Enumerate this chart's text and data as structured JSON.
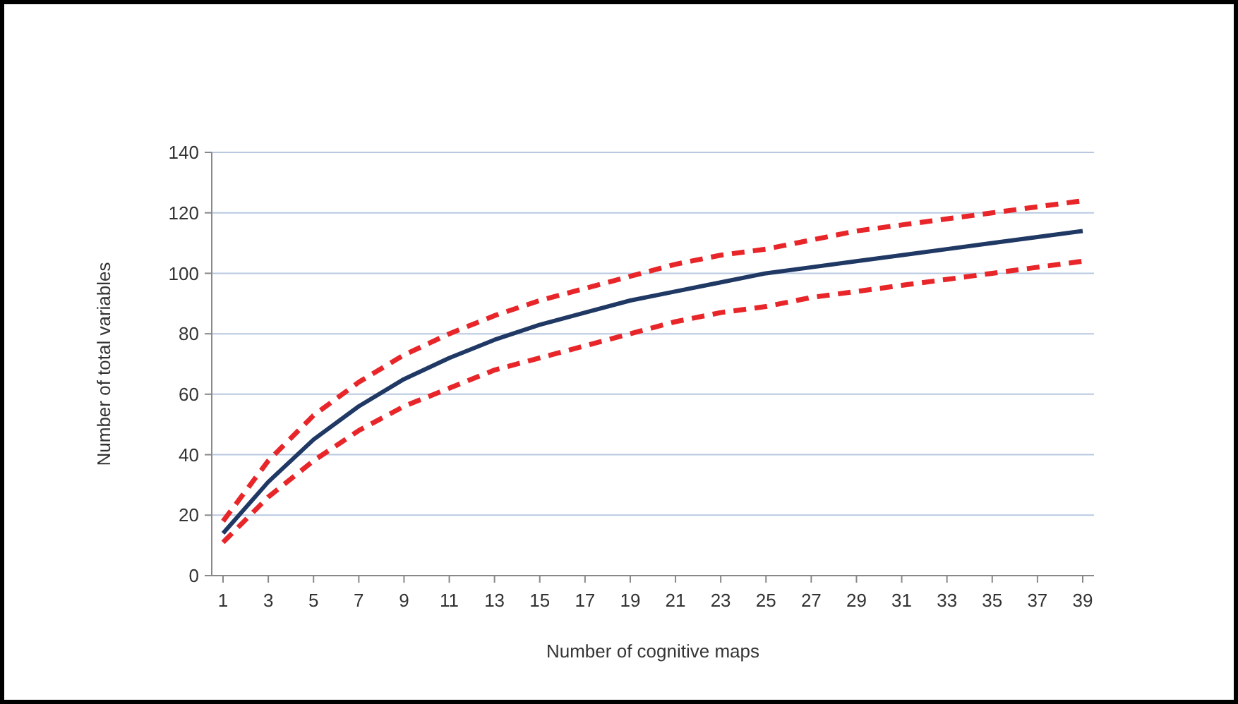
{
  "chart_data": {
    "type": "line",
    "xlabel": "Number of cognitive maps",
    "ylabel": "Number of total variables",
    "x": [
      1,
      3,
      5,
      7,
      9,
      11,
      13,
      15,
      17,
      19,
      21,
      23,
      25,
      27,
      29,
      31,
      33,
      35,
      37,
      39
    ],
    "xlim": [
      0.5,
      39.5
    ],
    "xticks": [
      1,
      3,
      5,
      7,
      9,
      11,
      13,
      15,
      17,
      19,
      21,
      23,
      25,
      27,
      29,
      31,
      33,
      35,
      37,
      39
    ],
    "ylim": [
      0,
      140
    ],
    "yticks": [
      0,
      20,
      40,
      60,
      80,
      100,
      120,
      140
    ],
    "grid": "y",
    "series": [
      {
        "color": "#e8262a",
        "line_style": "dashed",
        "values": [
          18,
          38,
          53,
          64,
          73,
          80,
          86,
          91,
          95,
          99,
          103,
          106,
          108,
          111,
          114,
          116,
          118,
          120,
          122,
          124
        ]
      },
      {
        "color": "#1f3864",
        "line_style": "solid",
        "values": [
          14,
          31,
          45,
          56,
          65,
          72,
          78,
          83,
          87,
          91,
          94,
          97,
          100,
          102,
          104,
          106,
          108,
          110,
          112,
          114
        ]
      },
      {
        "color": "#e8262a",
        "line_style": "dashed",
        "values": [
          11,
          26,
          38,
          48,
          56,
          62,
          68,
          72,
          76,
          80,
          84,
          87,
          89,
          92,
          94,
          96,
          98,
          100,
          102,
          104
        ]
      }
    ]
  }
}
